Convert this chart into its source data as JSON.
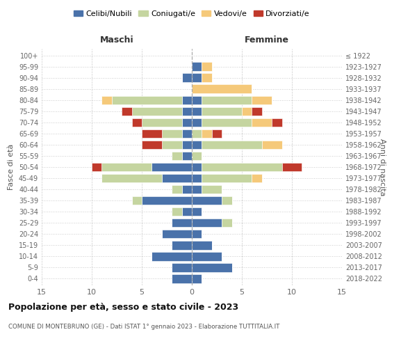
{
  "age_groups": [
    "0-4",
    "5-9",
    "10-14",
    "15-19",
    "20-24",
    "25-29",
    "30-34",
    "35-39",
    "40-44",
    "45-49",
    "50-54",
    "55-59",
    "60-64",
    "65-69",
    "70-74",
    "75-79",
    "80-84",
    "85-89",
    "90-94",
    "95-99",
    "100+"
  ],
  "birth_years": [
    "2018-2022",
    "2013-2017",
    "2008-2012",
    "2003-2007",
    "1998-2002",
    "1993-1997",
    "1988-1992",
    "1983-1987",
    "1978-1982",
    "1973-1977",
    "1968-1972",
    "1963-1967",
    "1958-1962",
    "1953-1957",
    "1948-1952",
    "1943-1947",
    "1938-1942",
    "1933-1937",
    "1928-1932",
    "1923-1927",
    "≤ 1922"
  ],
  "colors": {
    "celibi": "#4a72aa",
    "coniugati": "#c5d5a0",
    "vedovi": "#f5c97a",
    "divorziati": "#c0392b"
  },
  "maschi": {
    "celibi": [
      2,
      2,
      4,
      2,
      3,
      2,
      1,
      5,
      1,
      3,
      4,
      1,
      1,
      1,
      1,
      1,
      1,
      0,
      1,
      0,
      0
    ],
    "coniugati": [
      0,
      0,
      0,
      0,
      0,
      0,
      1,
      1,
      1,
      6,
      5,
      1,
      2,
      2,
      4,
      5,
      7,
      0,
      0,
      0,
      0
    ],
    "vedovi": [
      0,
      0,
      0,
      0,
      0,
      0,
      0,
      0,
      0,
      0,
      0,
      0,
      0,
      0,
      0,
      0,
      1,
      0,
      0,
      0,
      0
    ],
    "divorziati": [
      0,
      0,
      0,
      0,
      0,
      0,
      0,
      0,
      0,
      0,
      1,
      0,
      2,
      2,
      1,
      1,
      0,
      0,
      0,
      0,
      0
    ]
  },
  "femmine": {
    "celibi": [
      1,
      4,
      3,
      2,
      1,
      3,
      1,
      3,
      1,
      1,
      1,
      0,
      1,
      0,
      1,
      1,
      1,
      0,
      1,
      1,
      0
    ],
    "coniugati": [
      0,
      0,
      0,
      0,
      0,
      1,
      0,
      1,
      2,
      5,
      8,
      1,
      6,
      1,
      5,
      4,
      5,
      0,
      0,
      0,
      0
    ],
    "vedovi": [
      0,
      0,
      0,
      0,
      0,
      0,
      0,
      0,
      0,
      1,
      0,
      0,
      2,
      1,
      2,
      1,
      2,
      6,
      1,
      1,
      0
    ],
    "divorziati": [
      0,
      0,
      0,
      0,
      0,
      0,
      0,
      0,
      0,
      0,
      2,
      0,
      0,
      1,
      1,
      1,
      0,
      0,
      0,
      0,
      0
    ]
  },
  "xlim": 15,
  "title": "Popolazione per età, sesso e stato civile - 2023",
  "subtitle": "COMUNE DI MONTEBRUNO (GE) - Dati ISTAT 1° gennaio 2023 - Elaborazione TUTTITALIA.IT",
  "xlabel_left": "Maschi",
  "xlabel_right": "Femmine",
  "ylabel_left": "Fasce di età",
  "ylabel_right": "Anni di nascita",
  "legend_labels": [
    "Celibi/Nubili",
    "Coniugati/e",
    "Vedovi/e",
    "Divorziati/e"
  ],
  "bg_color": "#ffffff",
  "grid_color": "#cccccc"
}
